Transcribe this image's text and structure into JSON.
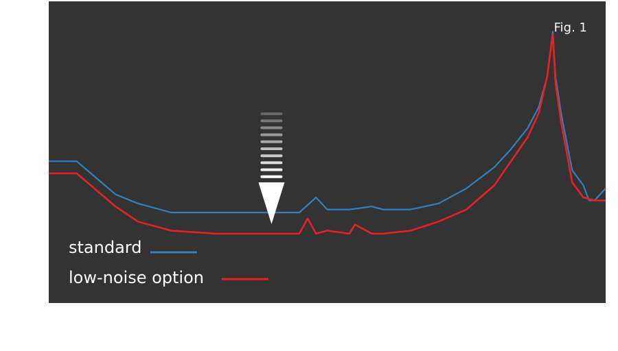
{
  "figure_label": "Fig. 1",
  "colors": {
    "background": "#333333",
    "standard": "#2f7fc1",
    "low_noise": "#e52121",
    "text": "#ffffff"
  },
  "chart_data": {
    "type": "line",
    "title": "",
    "xlabel": "",
    "ylabel": "",
    "xlim": [
      0,
      100
    ],
    "ylim": [
      0,
      100
    ],
    "grid": false,
    "legend_position": "bottom-left",
    "annotation": "downward arrow marking the reduced noise floor",
    "annotation_x": 40,
    "series": [
      {
        "name": "standard",
        "color": "#2f7fc1",
        "x": [
          0,
          5,
          12,
          16,
          22,
          30,
          40,
          45,
          48,
          50,
          54,
          58,
          60,
          65,
          70,
          75,
          80,
          83,
          86,
          88,
          89.5,
          90.5,
          91,
          92,
          94,
          96,
          97,
          98,
          100
        ],
        "y": [
          47,
          47,
          36,
          33,
          30,
          30,
          30,
          30,
          35,
          31,
          31,
          32,
          31,
          31,
          33,
          38,
          45,
          51,
          58,
          65,
          75,
          90,
          75,
          63,
          44,
          39,
          34,
          34,
          38
        ]
      },
      {
        "name": "low-noise option",
        "color": "#e52121",
        "x": [
          0,
          5,
          12,
          16,
          22,
          30,
          40,
          45,
          46.5,
          48,
          50,
          54,
          55,
          58,
          60,
          65,
          70,
          75,
          80,
          83,
          86,
          88,
          89.5,
          90.5,
          91,
          92,
          94,
          96,
          98,
          100
        ],
        "y": [
          43,
          43,
          32,
          27,
          24,
          23,
          23,
          23,
          28,
          23,
          24,
          23,
          26,
          23,
          23,
          24,
          27,
          31,
          39,
          47,
          55,
          63,
          75,
          89,
          73,
          60,
          40,
          35,
          34,
          34
        ]
      }
    ]
  }
}
